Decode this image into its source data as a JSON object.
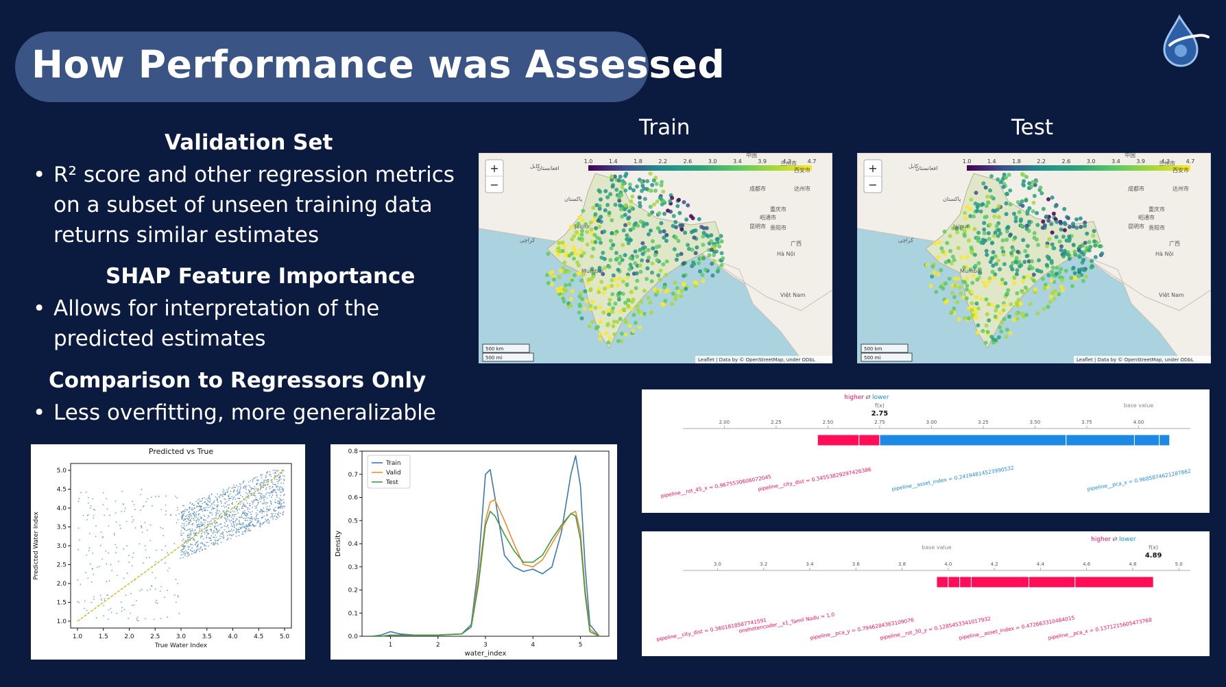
{
  "title": "How Performance was Assessed",
  "sections": [
    {
      "heading": "Validation Set",
      "lines": [
        "R² score and other regression metrics",
        "on a subset of unseen training data",
        "returns similar estimates"
      ]
    },
    {
      "heading": "SHAP Feature Importance",
      "lines": [
        "Allows for interpretation of the",
        "predicted estimates"
      ]
    },
    {
      "heading": "Comparison to Regressors Only",
      "lines": [
        "Less overfitting, more generalizable"
      ]
    }
  ],
  "bullet_char": "•",
  "maps": {
    "train_label": "Train",
    "test_label": "Test",
    "colorbar_ticks": [
      "1.0",
      "1.4",
      "1.8",
      "2.2",
      "2.6",
      "3.0",
      "3.4",
      "3.9",
      "4.3",
      "4.7"
    ],
    "zoom_in": "+",
    "zoom_out": "−",
    "scale_km": "500 km",
    "scale_mi": "500 mi",
    "attribution": "Leaflet | Data by © OpenStreetMap, under ODbL",
    "place_labels": [
      "Jaipur",
      "Mumbai",
      "Hà Nội",
      "Việt Nam",
      "重庆市",
      "成都市",
      "昆明市",
      "贵阳市",
      "昭通市",
      "广西",
      "兰州市",
      "西安市",
      "达州市",
      "中国",
      "پاکستان",
      "کابل",
      "کراچی",
      "افغانستان"
    ]
  },
  "scatter": {
    "title": "Predicted vs True",
    "xlabel": "True Water Index",
    "ylabel": "Predicted Water Index",
    "xticks": [
      "1.0",
      "1.5",
      "2.0",
      "2.5",
      "3.0",
      "3.5",
      "4.0",
      "4.5",
      "5.0"
    ],
    "yticks": [
      "1.0",
      "1.5",
      "2.0",
      "2.5",
      "3.0",
      "3.5",
      "4.0",
      "4.5",
      "5.0"
    ]
  },
  "chart_data": {
    "type": "line",
    "title": "",
    "xlabel": "water_index",
    "ylabel": "Density",
    "xlim": [
      0.4,
      5.6
    ],
    "ylim": [
      0,
      0.8
    ],
    "xticks": [
      1,
      2,
      3,
      4,
      5
    ],
    "yticks": [
      0.0,
      0.1,
      0.2,
      0.3,
      0.4,
      0.5,
      0.6,
      0.7,
      0.8
    ],
    "legend_position": "top-left",
    "x": [
      0.6,
      0.8,
      1.0,
      1.2,
      1.5,
      2.0,
      2.5,
      2.7,
      2.85,
      3.0,
      3.1,
      3.2,
      3.4,
      3.6,
      3.8,
      4.0,
      4.2,
      4.4,
      4.6,
      4.8,
      4.9,
      5.0,
      5.1,
      5.2,
      5.4
    ],
    "series": [
      {
        "name": "Train",
        "color": "#3a77b0",
        "values": [
          0.0,
          0.005,
          0.02,
          0.01,
          0.005,
          0.005,
          0.01,
          0.05,
          0.3,
          0.7,
          0.72,
          0.6,
          0.35,
          0.3,
          0.28,
          0.29,
          0.27,
          0.3,
          0.45,
          0.7,
          0.78,
          0.65,
          0.3,
          0.05,
          0.0
        ]
      },
      {
        "name": "Valid",
        "color": "#ef8a2f",
        "values": [
          0.0,
          0.0,
          0.005,
          0.005,
          0.005,
          0.005,
          0.01,
          0.04,
          0.25,
          0.5,
          0.58,
          0.59,
          0.5,
          0.4,
          0.31,
          0.3,
          0.33,
          0.4,
          0.47,
          0.53,
          0.54,
          0.45,
          0.2,
          0.03,
          0.0
        ]
      },
      {
        "name": "Test",
        "color": "#3d9b3f",
        "values": [
          0.0,
          0.0,
          0.005,
          0.005,
          0.005,
          0.005,
          0.01,
          0.04,
          0.22,
          0.48,
          0.54,
          0.52,
          0.44,
          0.37,
          0.32,
          0.32,
          0.35,
          0.42,
          0.48,
          0.53,
          0.52,
          0.42,
          0.18,
          0.02,
          0.0
        ]
      }
    ]
  },
  "shap_top": {
    "higher": "higher",
    "lower": "lower",
    "fx_label": "f(x)",
    "fx_value": "2.75",
    "base_label": "base value",
    "axis_ticks": [
      "2.00",
      "2.25",
      "2.50",
      "2.75",
      "3.00",
      "3.25",
      "3.50",
      "3.75",
      "4.00"
    ],
    "red_features": [
      "pipeline__rot_45_x = 0.9675530606072045",
      "pipeline__city_dist = 0.34553829297426386"
    ],
    "blue_features": [
      "pipeline__asset_index = 0.24194814523990532",
      "pipeline__pca_x = 0.9685874621287862"
    ]
  },
  "shap_bottom": {
    "higher": "higher",
    "lower": "lower",
    "fx_label": "f(x)",
    "fx_value": "4.89",
    "base_label": "base value",
    "axis_ticks": [
      "3.0",
      "3.2",
      "3.4",
      "3.6",
      "3.8",
      "4.0",
      "4.2",
      "4.4",
      "4.6",
      "4.8",
      "5.0"
    ],
    "red_features": [
      "pipeline__city_dist = 0.3601818587741591",
      "onehotencoder__x1_Tamil Nadu = 1.0",
      "pipeline__pca_y = 0.7946284363109076",
      "pipeline__rot_30_y = 0.1285453341017932",
      "pipeline__asset_index = 0.472663310484015",
      "pipeline__pca_x = 0.1371215605473768"
    ]
  },
  "colors": {
    "background": "#0b1a3f",
    "title_pill": "#3a5585",
    "shap_red": "#ff0d57",
    "shap_blue": "#1e88e5"
  }
}
